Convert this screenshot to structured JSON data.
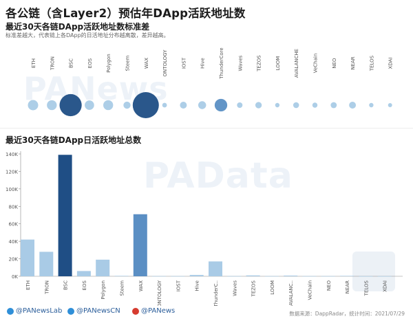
{
  "header": {
    "title": "各公链（含Layer2）预估年DApp活跃地址数",
    "subtitle_std": "最近30天各链DApp活跃地址数标准差",
    "note": "标准差越大，代表链上各DApp的日活地址分布越离散，差异越高。",
    "subtitle_total": "最近30天各链DApp日活跃地址总数"
  },
  "watermarks": {
    "news": "PANews",
    "data": "PAData"
  },
  "footer": {
    "twitter_lab": "@PANewsLab",
    "twitter_cn": "@PANewsCN",
    "weibo": "@PANews",
    "source": "数据来源：DappRadar，统计时间：2021/07/29"
  },
  "colors": {
    "dark": "#1f4e85",
    "mid": "#5b8fc4",
    "light": "#a9cbe6",
    "axis": "#888888"
  },
  "chart_data": [
    {
      "type": "scatter",
      "title": "最近30天各链DApp活跃地址数标准差",
      "categories": [
        "ETH",
        "TRON",
        "BSC",
        "EOS",
        "Polygon",
        "Steem",
        "WAX",
        "ONTOLOGY",
        "IOST",
        "Hive",
        "ThunderCore",
        "Waves",
        "TEZOS",
        "LOOM",
        "AVALANCHE",
        "VeChain",
        "NEO",
        "NEAR",
        "TELOS",
        "XDAI"
      ],
      "values": [
        5,
        4.5,
        28,
        4,
        4.5,
        2,
        40,
        0.6,
        1.8,
        2.6,
        8,
        1,
        1.5,
        0.5,
        1.2,
        0.8,
        1.3,
        1.8,
        0.5,
        0.4
      ],
      "x_tick_labels": [
        "ETH",
        "TRON",
        "BSC",
        "EOS",
        "Polygon",
        "Steem",
        "WAX",
        "ONTOLOGY",
        "IOST",
        "Hive",
        "ThunderCore",
        "Waves",
        "TEZOS",
        "LOOM",
        "AVALANCHE",
        "VeChain",
        "NEO",
        "NEAR",
        "TELOS",
        "XDAI"
      ]
    },
    {
      "type": "bar",
      "title": "最近30天各链DApp日活跃地址总数",
      "categories": [
        "ETH",
        "TRON",
        "BSC",
        "EOS",
        "Polygon",
        "Steem",
        "WAX",
        "ONTOLOGY",
        "IOST",
        "Hive",
        "ThunderC..",
        "Waves",
        "TEZOS",
        "LOOM",
        "AVALANC..",
        "VeChain",
        "NEO",
        "NEAR",
        "TELOS",
        "XDAI"
      ],
      "values": [
        42000,
        28000,
        139000,
        6000,
        19000,
        500,
        71000,
        200,
        200,
        1500,
        17000,
        200,
        1000,
        200,
        800,
        200,
        200,
        500,
        100,
        100
      ],
      "yticks": [
        "0K",
        "20K",
        "40K",
        "60K",
        "80K",
        "100K",
        "120K",
        "140K"
      ],
      "ylim": [
        0,
        140000
      ],
      "grid": false
    }
  ]
}
